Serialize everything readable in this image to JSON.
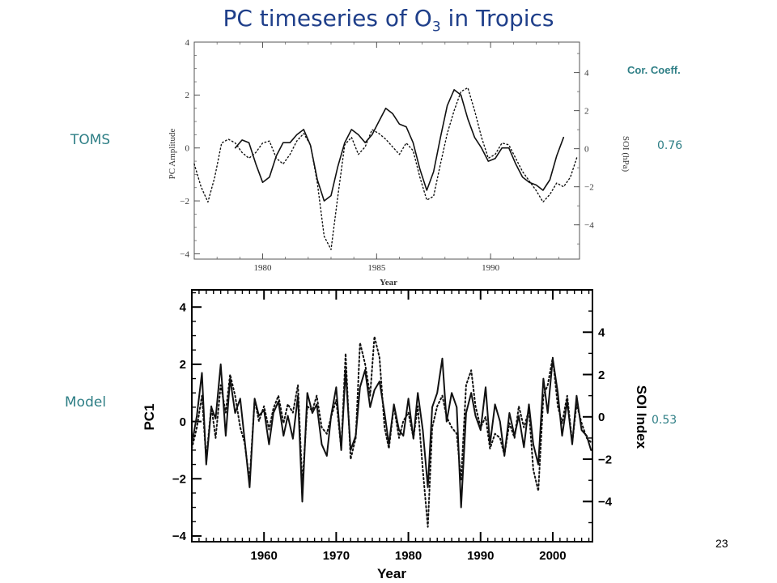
{
  "slide": {
    "title_prefix": "PC timeseries of O",
    "title_sub": "3",
    "title_suffix": " in Tropics",
    "toms_label": "TOMS",
    "model_label": "Model",
    "cor_header": "Cor. Coeff.",
    "toms_corr": "0.76",
    "model_corr": "0.53",
    "page_number": "23"
  },
  "chart_data": [
    {
      "type": "line",
      "xlabel": "Year",
      "ylabel": "PC Amplitude",
      "y2label": "SOI (hPa)",
      "xlim": [
        1977.0,
        1993.9
      ],
      "ylim": [
        -4.2,
        4.0
      ],
      "y2lim": [
        -5.8,
        5.6
      ],
      "xticks": [
        1980,
        1985,
        1990
      ],
      "yticks": [
        -4,
        -2,
        0,
        2,
        4
      ],
      "y2ticks": [
        -4,
        -2,
        0,
        2,
        4
      ],
      "grid": false,
      "series": [
        {
          "style": "solid",
          "axis": "left",
          "x": [
            1978.8,
            1979.1,
            1979.4,
            1979.7,
            1980.0,
            1980.3,
            1980.6,
            1980.9,
            1981.2,
            1981.5,
            1981.8,
            1982.1,
            1982.4,
            1982.7,
            1983.0,
            1983.3,
            1983.6,
            1983.9,
            1984.2,
            1984.5,
            1984.8,
            1985.1,
            1985.4,
            1985.7,
            1986.0,
            1986.3,
            1986.6,
            1986.9,
            1987.2,
            1987.5,
            1987.8,
            1988.1,
            1988.4,
            1988.7,
            1989.0,
            1989.3,
            1989.6,
            1989.9,
            1990.2,
            1990.5,
            1990.8,
            1991.1,
            1991.4,
            1991.7,
            1992.0,
            1992.3,
            1992.6,
            1992.9,
            1993.2
          ],
          "y": [
            0.0,
            0.3,
            0.2,
            -0.6,
            -1.3,
            -1.1,
            -0.3,
            0.2,
            0.2,
            0.5,
            0.7,
            0.1,
            -1.2,
            -2.0,
            -1.8,
            -0.7,
            0.2,
            0.7,
            0.5,
            0.2,
            0.5,
            1.0,
            1.5,
            1.3,
            0.9,
            0.8,
            0.2,
            -0.8,
            -1.6,
            -0.9,
            0.4,
            1.6,
            2.2,
            2.0,
            1.1,
            0.4,
            0.0,
            -0.5,
            -0.4,
            0.0,
            0.0,
            -0.6,
            -1.1,
            -1.3,
            -1.4,
            -1.6,
            -1.2,
            -0.3,
            0.4
          ]
        },
        {
          "style": "dotted",
          "axis": "right",
          "x": [
            1977.0,
            1977.3,
            1977.6,
            1977.9,
            1978.2,
            1978.5,
            1978.8,
            1979.1,
            1979.4,
            1979.7,
            1980.0,
            1980.3,
            1980.6,
            1980.9,
            1981.2,
            1981.5,
            1981.8,
            1982.1,
            1982.4,
            1982.7,
            1983.0,
            1983.3,
            1983.6,
            1983.9,
            1984.2,
            1984.5,
            1984.8,
            1985.1,
            1985.4,
            1985.7,
            1986.0,
            1986.3,
            1986.6,
            1986.9,
            1987.2,
            1987.5,
            1987.8,
            1988.1,
            1988.4,
            1988.7,
            1989.0,
            1989.3,
            1989.6,
            1989.9,
            1990.2,
            1990.5,
            1990.8,
            1991.1,
            1991.4,
            1991.7,
            1992.0,
            1992.3,
            1992.6,
            1992.9,
            1993.2,
            1993.5,
            1993.8
          ],
          "y": [
            -0.8,
            -2.0,
            -2.8,
            -1.5,
            0.3,
            0.5,
            0.3,
            -0.2,
            -0.5,
            -0.2,
            0.3,
            0.4,
            -0.5,
            -0.8,
            -0.3,
            0.4,
            0.8,
            0.2,
            -1.8,
            -4.6,
            -5.3,
            -2.5,
            0.2,
            0.6,
            -0.3,
            0.1,
            1.0,
            0.8,
            0.5,
            0.1,
            -0.3,
            0.3,
            -0.1,
            -1.5,
            -2.7,
            -2.5,
            -0.8,
            0.8,
            2.0,
            3.0,
            3.2,
            2.0,
            0.6,
            -0.5,
            -0.3,
            0.3,
            0.2,
            -0.5,
            -1.2,
            -1.7,
            -2.2,
            -2.8,
            -2.4,
            -1.8,
            -2.0,
            -1.5,
            -0.4
          ]
        }
      ]
    },
    {
      "type": "line",
      "xlabel": "Year",
      "ylabel": "PC1",
      "y2label": "SOI Index",
      "xlim": [
        1950.0,
        2005.5
      ],
      "ylim": [
        -4.2,
        4.6
      ],
      "y2lim": [
        -5.9,
        6.0
      ],
      "xticks": [
        1960,
        1970,
        1980,
        1990,
        2000
      ],
      "yticks": [
        -4,
        -2,
        0,
        2,
        4
      ],
      "y2ticks": [
        -4,
        -2,
        0,
        2,
        4
      ],
      "grid": false,
      "series": [
        {
          "style": "solid",
          "axis": "left",
          "x": [
            1950.0,
            1950.7,
            1951.4,
            1952.0,
            1952.7,
            1953.3,
            1954.0,
            1954.7,
            1955.3,
            1956.0,
            1956.7,
            1957.3,
            1958.0,
            1958.7,
            1959.3,
            1960.0,
            1960.7,
            1961.3,
            1962.0,
            1962.7,
            1963.3,
            1964.0,
            1964.7,
            1965.3,
            1966.0,
            1966.7,
            1967.3,
            1968.0,
            1968.7,
            1969.3,
            1970.0,
            1970.7,
            1971.3,
            1972.0,
            1972.7,
            1973.3,
            1974.0,
            1974.7,
            1975.3,
            1976.0,
            1976.7,
            1977.3,
            1978.0,
            1978.7,
            1979.3,
            1980.0,
            1980.7,
            1981.3,
            1982.0,
            1982.7,
            1983.3,
            1984.0,
            1984.7,
            1985.3,
            1986.0,
            1986.7,
            1987.3,
            1988.0,
            1988.7,
            1989.3,
            1990.0,
            1990.7,
            1991.3,
            1992.0,
            1992.7,
            1993.3,
            1994.0,
            1994.7,
            1995.3,
            1996.0,
            1996.7,
            1997.3,
            1998.0,
            1998.7,
            1999.3,
            2000.0,
            2000.7,
            2001.3,
            2002.0,
            2002.7,
            2003.3,
            2004.0,
            2004.7,
            2005.3
          ],
          "y": [
            -0.8,
            0.2,
            1.7,
            -1.5,
            0.5,
            0.1,
            2.0,
            -0.5,
            1.5,
            0.3,
            0.8,
            -0.6,
            -2.3,
            0.8,
            0.2,
            0.4,
            -0.8,
            0.3,
            0.7,
            -0.5,
            0.2,
            -0.6,
            0.9,
            -2.8,
            1.0,
            0.3,
            0.6,
            -0.8,
            -1.2,
            0.2,
            1.2,
            -1.0,
            1.8,
            -1.0,
            -0.5,
            1.2,
            1.8,
            0.5,
            1.1,
            1.4,
            0.3,
            -0.8,
            0.6,
            -0.3,
            -0.5,
            0.8,
            -0.6,
            1.0,
            -0.3,
            -2.3,
            0.5,
            1.0,
            2.2,
            0.0,
            1.0,
            0.5,
            -3.0,
            0.3,
            1.0,
            0.2,
            -0.3,
            1.2,
            -0.8,
            0.6,
            0.0,
            -1.2,
            0.3,
            -0.5,
            0.2,
            -0.9,
            0.6,
            -0.8,
            -1.5,
            1.5,
            0.3,
            2.2,
            1.0,
            -0.5,
            0.7,
            -0.8,
            0.9,
            -0.3,
            -0.5,
            -1.0
          ]
        },
        {
          "style": "dotted",
          "axis": "right",
          "x": [
            1950.0,
            1950.7,
            1951.4,
            1952.0,
            1952.7,
            1953.3,
            1954.0,
            1954.7,
            1955.3,
            1956.0,
            1956.7,
            1957.3,
            1958.0,
            1958.7,
            1959.3,
            1960.0,
            1960.7,
            1961.3,
            1962.0,
            1962.7,
            1963.3,
            1964.0,
            1964.7,
            1965.3,
            1966.0,
            1966.7,
            1967.3,
            1968.0,
            1968.7,
            1969.3,
            1970.0,
            1970.7,
            1971.3,
            1972.0,
            1972.7,
            1973.3,
            1974.0,
            1974.7,
            1975.3,
            1976.0,
            1976.7,
            1977.3,
            1978.0,
            1978.7,
            1979.3,
            1980.0,
            1980.7,
            1981.3,
            1982.0,
            1982.7,
            1983.3,
            1984.0,
            1984.7,
            1985.3,
            1986.0,
            1986.7,
            1987.3,
            1988.0,
            1988.7,
            1989.3,
            1990.0,
            1990.7,
            1991.3,
            1992.0,
            1992.7,
            1993.3,
            1994.0,
            1994.7,
            1995.3,
            1996.0,
            1996.7,
            1997.3,
            1998.0,
            1998.7,
            1999.3,
            2000.0,
            2000.7,
            2001.3,
            2002.0,
            2002.7,
            2003.3,
            2004.0,
            2004.7,
            2005.3
          ],
          "y": [
            -1.5,
            -0.5,
            1.0,
            -2.0,
            0.5,
            -1.0,
            1.5,
            0.2,
            2.0,
            1.0,
            -0.5,
            -1.2,
            -3.0,
            0.8,
            -0.2,
            0.5,
            -0.6,
            0.4,
            1.0,
            -0.3,
            0.6,
            0.2,
            1.5,
            -3.2,
            0.5,
            0.3,
            1.0,
            -0.5,
            -0.8,
            0.0,
            0.8,
            -1.5,
            3.0,
            -2.0,
            -1.0,
            3.5,
            2.5,
            1.0,
            3.8,
            2.8,
            -0.5,
            -1.5,
            0.5,
            -1.0,
            -0.2,
            0.2,
            -1.0,
            0.5,
            -2.5,
            -5.2,
            -0.5,
            0.5,
            1.0,
            0.0,
            -0.5,
            -0.8,
            -3.0,
            1.5,
            2.2,
            0.5,
            -0.5,
            0.0,
            -1.5,
            -0.8,
            -1.0,
            -1.8,
            -0.3,
            -1.0,
            0.5,
            -0.5,
            0.3,
            -2.5,
            -3.5,
            1.0,
            1.5,
            2.8,
            0.5,
            -0.3,
            1.0,
            -1.2,
            0.6,
            -0.3,
            -1.0,
            -1.2
          ]
        }
      ]
    }
  ]
}
